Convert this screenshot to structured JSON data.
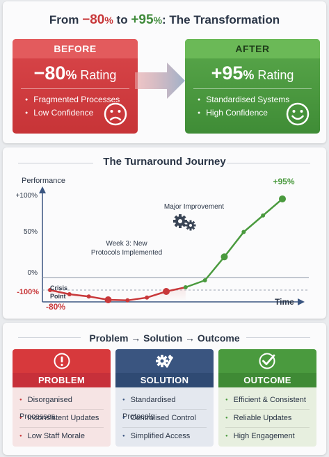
{
  "header": {
    "prefix": "From ",
    "from_value": "−80",
    "from_unit": "%",
    "middle": " to ",
    "to_value": "+95",
    "to_unit": "%",
    "suffix": ": The Transformation"
  },
  "before": {
    "heading": "BEFORE",
    "value": "−80",
    "unit": "%",
    "label": " Rating",
    "bullets": [
      "Fragmented Processes",
      "Low Confidence"
    ],
    "face": "sad-face"
  },
  "after": {
    "heading": "AFTER",
    "value": "+95",
    "unit": "%",
    "label": " Rating",
    "bullets": [
      "Standardised Systems",
      "High Confidence"
    ],
    "face": "happy-face"
  },
  "journey": {
    "title": "The Turnaround Journey"
  },
  "chart_data": {
    "type": "line",
    "ylabel": "Performance",
    "xlabel": "Time",
    "y_ticks": [
      "+100%",
      "50%",
      "0%",
      "-100%"
    ],
    "points": [
      {
        "x": 0,
        "y": -45
      },
      {
        "x": 1,
        "y": -60
      },
      {
        "x": 2,
        "y": -68
      },
      {
        "x": 3,
        "y": -80
      },
      {
        "x": 4,
        "y": -82
      },
      {
        "x": 5,
        "y": -72
      },
      {
        "x": 6,
        "y": -50
      },
      {
        "x": 7,
        "y": -35
      },
      {
        "x": 8,
        "y": -10
      },
      {
        "x": 9,
        "y": 25
      },
      {
        "x": 10,
        "y": 55
      },
      {
        "x": 11,
        "y": 75
      },
      {
        "x": 12,
        "y": 95
      }
    ],
    "annotations": {
      "start_label_line1": "Crisis",
      "start_label_line2": "Point",
      "start_value": "-80%",
      "week3_line1": "Week 3: New",
      "week3_line2": "Protocols Implemented",
      "major": "Major Improvement",
      "end_value": "+95%"
    },
    "colors": {
      "decline": "#c8383a",
      "rise": "#4a9a3e"
    }
  },
  "pso": {
    "title": "Problem → Solution → Outcome",
    "problem": {
      "heading": "PROBLEM",
      "icon": "exclamation-icon",
      "items": [
        "Disorganised Processes",
        "Inconsistent Updates",
        "Low Staff Morale"
      ]
    },
    "solution": {
      "heading": "SOLUTION",
      "icon": "gear-wrench-icon",
      "items": [
        "Standardised Protocols",
        "Centralised Control",
        "Simplified Access"
      ]
    },
    "outcome": {
      "heading": "OUTCOME",
      "icon": "checkmark-icon",
      "items": [
        "Efficient & Consistent",
        "Reliable Updates",
        "High Engagement"
      ]
    }
  },
  "colors": {
    "red": "#d7393c",
    "green": "#4a9a3e",
    "navy": "#2f4a73"
  }
}
